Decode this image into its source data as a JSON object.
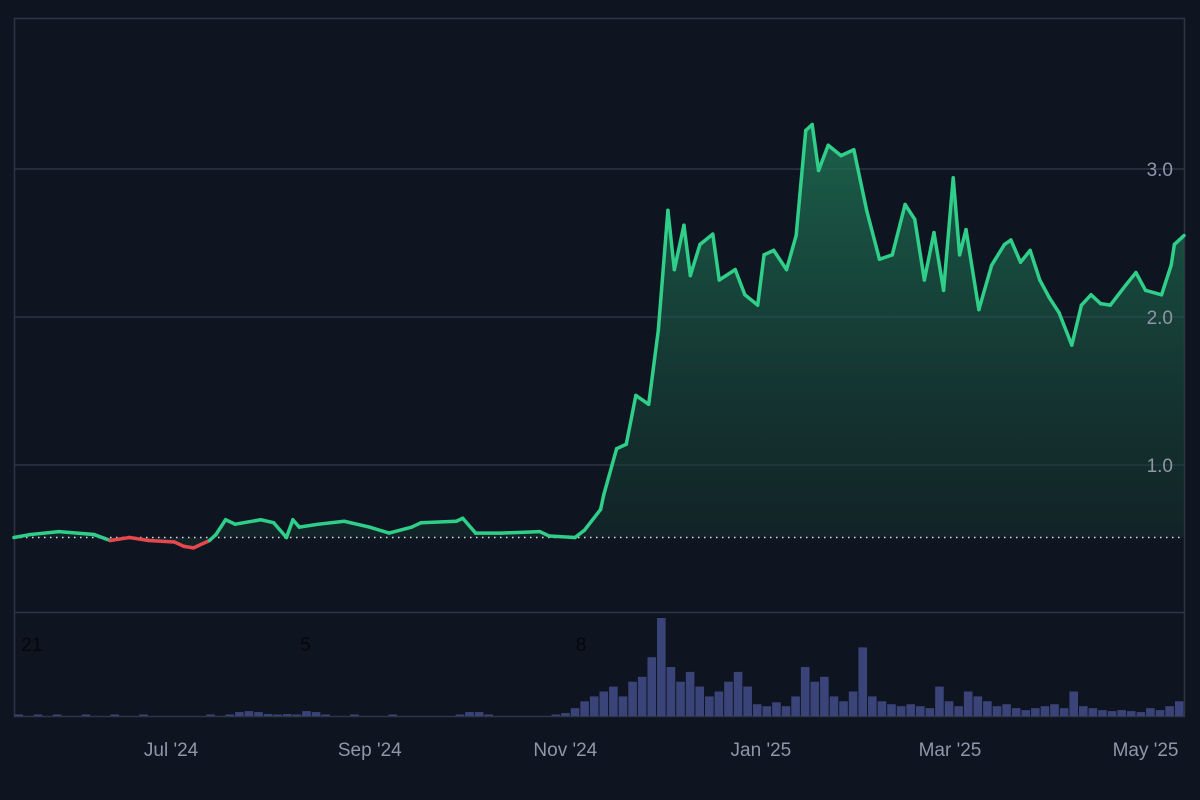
{
  "chart_data": {
    "type": "area",
    "title": "",
    "xlabel": "",
    "ylabel": "",
    "x_unit": "days since start",
    "xlim": [
      0,
      365
    ],
    "ylim": [
      0,
      4.02
    ],
    "grid": true,
    "baseline": 0.51,
    "colors": {
      "background": "#0f1421",
      "up": "#2fcf8a",
      "down": "#e5484d",
      "grid": "#2d3444",
      "volume": "#3a4478",
      "label": "#8f96a8"
    },
    "y_ticks": [
      {
        "value": 1.0,
        "label": "1.0"
      },
      {
        "value": 2.0,
        "label": "2.0"
      },
      {
        "value": 3.0,
        "label": "3.0"
      }
    ],
    "x_ticks": [
      {
        "day": 49,
        "label": "Jul '24"
      },
      {
        "day": 111,
        "label": "Sep '24"
      },
      {
        "day": 172,
        "label": "Nov '24"
      },
      {
        "day": 233,
        "label": "Jan '25"
      },
      {
        "day": 292,
        "label": "Mar '25"
      },
      {
        "day": 353,
        "label": "May '25"
      }
    ],
    "markers": [
      {
        "day": 1,
        "label": "21"
      },
      {
        "day": 88,
        "label": "5"
      },
      {
        "day": 174,
        "label": "8"
      }
    ],
    "series": [
      {
        "name": "price",
        "x": [
          0,
          5,
          14,
          25,
          30,
          36,
          42,
          50,
          53,
          56,
          61,
          63,
          66,
          69,
          77,
          81,
          85,
          87,
          89,
          95,
          103,
          111,
          117,
          124,
          127,
          138,
          140,
          144,
          152,
          164,
          167,
          175,
          178,
          183,
          184,
          188,
          191,
          194,
          198,
          201,
          204,
          206,
          209,
          211,
          214,
          218,
          220,
          225,
          228,
          232,
          234,
          237,
          241,
          244,
          247,
          249,
          251,
          254,
          258,
          262,
          266,
          270,
          274,
          278,
          281,
          284,
          287,
          290,
          293,
          295,
          297,
          301,
          305,
          309,
          311,
          314,
          317,
          320,
          323,
          326,
          330,
          333,
          336,
          339,
          342,
          347,
          350,
          353,
          358,
          361,
          362,
          365
        ],
        "values": [
          0.51,
          0.53,
          0.55,
          0.53,
          0.49,
          0.51,
          0.49,
          0.48,
          0.45,
          0.44,
          0.49,
          0.53,
          0.63,
          0.6,
          0.63,
          0.61,
          0.51,
          0.63,
          0.58,
          0.6,
          0.62,
          0.58,
          0.54,
          0.58,
          0.61,
          0.62,
          0.64,
          0.54,
          0.54,
          0.55,
          0.52,
          0.51,
          0.56,
          0.7,
          0.8,
          1.11,
          1.14,
          1.47,
          1.41,
          1.91,
          2.72,
          2.32,
          2.62,
          2.28,
          2.49,
          2.56,
          2.25,
          2.32,
          2.15,
          2.08,
          2.42,
          2.45,
          2.32,
          2.55,
          3.26,
          3.3,
          2.99,
          3.16,
          3.09,
          3.13,
          2.72,
          2.39,
          2.42,
          2.76,
          2.66,
          2.25,
          2.57,
          2.18,
          2.94,
          2.42,
          2.59,
          2.05,
          2.35,
          2.49,
          2.52,
          2.37,
          2.45,
          2.25,
          2.13,
          2.03,
          1.81,
          2.08,
          2.15,
          2.09,
          2.08,
          2.22,
          2.3,
          2.18,
          2.15,
          2.35,
          2.49,
          2.55
        ]
      }
    ],
    "volume": {
      "bin_days": 3,
      "values": [
        1,
        0,
        1,
        0,
        1,
        0,
        0,
        1,
        0,
        0,
        1,
        0,
        0,
        1,
        0,
        0,
        0,
        0,
        0,
        0,
        1,
        0,
        1,
        4,
        5,
        4,
        2,
        1,
        2,
        1,
        5,
        4,
        1,
        0,
        0,
        1,
        0,
        0,
        0,
        1,
        0,
        0,
        0,
        0,
        0,
        0,
        1,
        4,
        4,
        1,
        0,
        0,
        0,
        0,
        0,
        0,
        1,
        3,
        8,
        15,
        20,
        25,
        30,
        20,
        35,
        40,
        60,
        100,
        50,
        35,
        45,
        30,
        20,
        25,
        35,
        45,
        30,
        12,
        10,
        14,
        10,
        20,
        50,
        35,
        40,
        20,
        15,
        25,
        70,
        20,
        15,
        12,
        10,
        12,
        10,
        8,
        30,
        15,
        10,
        25,
        20,
        15,
        10,
        12,
        8,
        6,
        8,
        10,
        12,
        8,
        25,
        10,
        8,
        6,
        5,
        6,
        5,
        4,
        8,
        6,
        10,
        15
      ]
    }
  }
}
